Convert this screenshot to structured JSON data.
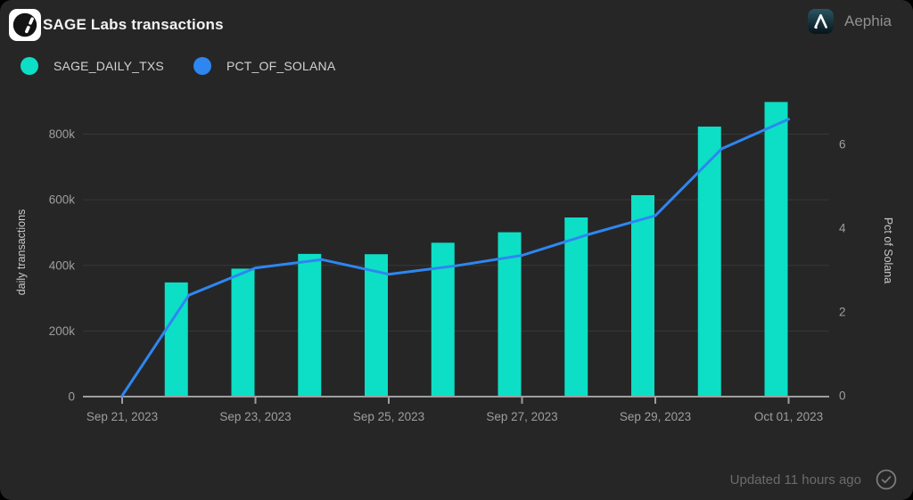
{
  "header": {
    "title": "SAGE Labs transactions",
    "brand": "Aephia"
  },
  "footer": {
    "updated": "Updated 11 hours ago"
  },
  "icons": {
    "header_logo": "sage-leaf-logo",
    "brand_logo": "aephia-lambda-logo",
    "footer_status": "check-circle"
  },
  "colors": {
    "background": "#262626",
    "page": "#000000",
    "grid": "#383838",
    "axis": "#9e9e9e",
    "tick_text": "#9e9e9e",
    "title_text": "#f2f2f2",
    "legend_text": "#d2d2d2",
    "axis_title_text": "#c9c9c9",
    "footer_text": "#6b6b6b",
    "brand_text": "#909090",
    "bar_color": "#0cdfc6",
    "line_color": "#2e86f1"
  },
  "chart_data": {
    "type": "combo",
    "title": "SAGE Labs transactions",
    "grid": "horizontal",
    "legend_position": "top-left",
    "x": [
      "Sep 21, 2023",
      "Sep 22, 2023",
      "Sep 23, 2023",
      "Sep 24, 2023",
      "Sep 25, 2023",
      "Sep 26, 2023",
      "Sep 27, 2023",
      "Sep 28, 2023",
      "Sep 29, 2023",
      "Sep 30, 2023",
      "Oct 01, 2023"
    ],
    "x_tick_labels": [
      "Sep 21, 2023",
      "Sep 23, 2023",
      "Sep 25, 2023",
      "Sep 27, 2023",
      "Sep 29, 2023",
      "Oct 01, 2023"
    ],
    "series": [
      {
        "name": "SAGE_DAILY_TXS",
        "type": "bar",
        "yaxis": "left",
        "color": "#0cdfc6",
        "values": [
          null,
          348000,
          390000,
          435000,
          434000,
          469000,
          501000,
          546000,
          614000,
          823000,
          898000
        ]
      },
      {
        "name": "PCT_OF_SOLANA",
        "type": "line",
        "yaxis": "right",
        "color": "#2e86f1",
        "values": [
          0,
          2.4,
          3.05,
          3.25,
          2.9,
          3.1,
          3.35,
          3.85,
          4.3,
          5.9,
          6.6
        ]
      }
    ],
    "left_axis": {
      "label": "daily transactions",
      "min": 0,
      "max": 800000,
      "ticks": [
        0,
        200000,
        400000,
        600000,
        800000
      ],
      "tick_labels": [
        "0",
        "200k",
        "400k",
        "600k",
        "800k"
      ]
    },
    "right_axis": {
      "label": "Pct of Solana",
      "min": 0,
      "max": 6,
      "ticks": [
        0,
        2,
        4,
        6
      ],
      "tick_labels": [
        "0",
        "2",
        "4",
        "6"
      ]
    }
  }
}
